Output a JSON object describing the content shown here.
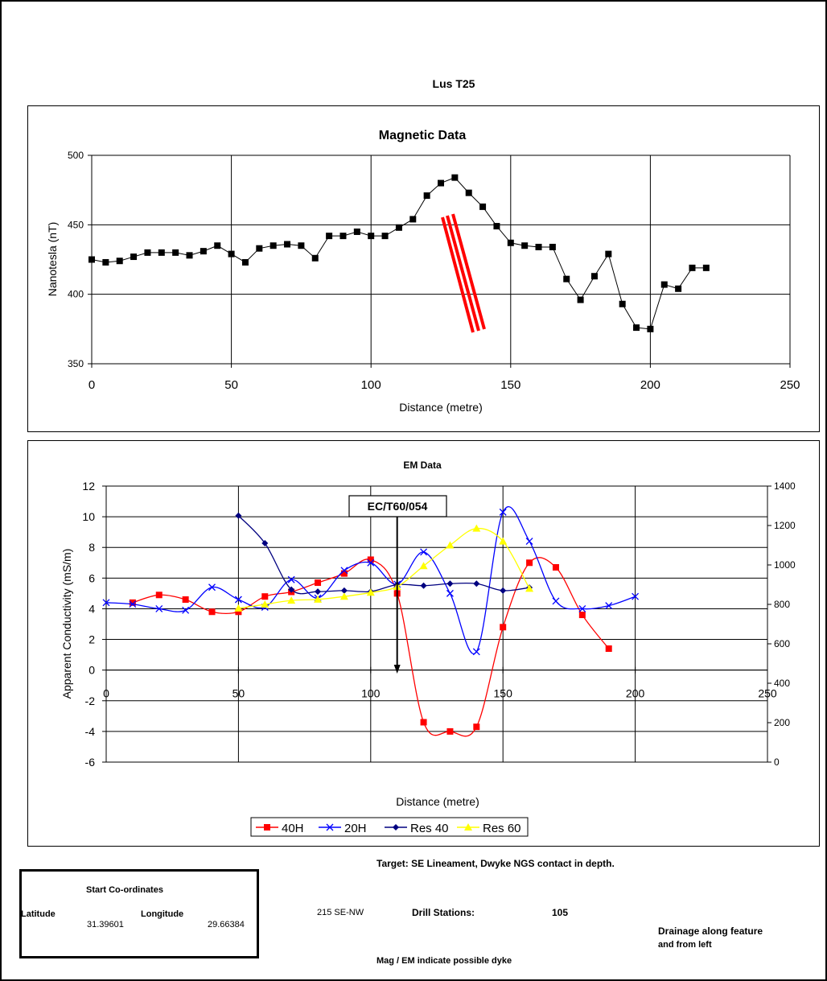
{
  "page": {
    "title": "Lus T25",
    "target_text": "Target: SE Lineament, Dwyke NGS contact in depth.",
    "coords": {
      "heading": "Start Co-ordinates",
      "latitude_label": "Latitude",
      "longitude_label": "Longitude",
      "latitude_value": "31.39601",
      "longitude_value": "29.66384"
    },
    "direction": "215 SE-NW",
    "drill_label": "Drill Stations:",
    "drill_value": "105",
    "drainage_line1": "Drainage along feature",
    "drainage_line2": "and from left",
    "mag_em_note": "Mag / EM indicate possible dyke"
  },
  "chart_data": [
    {
      "type": "line",
      "title": "Magnetic Data",
      "xlabel": "Distance (metre)",
      "ylabel": "Nanotesla (nT)",
      "xlim": [
        0,
        250
      ],
      "ylim": [
        350,
        500
      ],
      "x_ticks": [
        "0",
        "50",
        "100",
        "150",
        "200",
        "250"
      ],
      "y_ticks": [
        "350",
        "400",
        "450",
        "500"
      ],
      "grid": true,
      "series_color": "#000000",
      "x": [
        0,
        5,
        10,
        15,
        20,
        25,
        30,
        35,
        40,
        45,
        50,
        55,
        60,
        65,
        70,
        75,
        80,
        85,
        90,
        95,
        100,
        105,
        110,
        115,
        120,
        125,
        130,
        135,
        140,
        145,
        150,
        155,
        160,
        165,
        170,
        175,
        180,
        185,
        190,
        195,
        200,
        205,
        210,
        215,
        220
      ],
      "values": [
        425,
        423,
        424,
        427,
        430,
        430,
        430,
        428,
        431,
        435,
        429,
        423,
        433,
        435,
        436,
        435,
        426,
        442,
        442,
        445,
        442,
        442,
        448,
        454,
        471,
        480,
        484,
        473,
        463,
        449,
        437,
        435,
        434,
        434,
        411,
        396,
        413,
        429,
        393,
        376,
        375,
        407,
        404,
        419,
        419
      ],
      "dyke_marker_color": "#ff0000"
    },
    {
      "type": "line",
      "title": "EM Data",
      "xlabel": "Distance (metre)",
      "ylabel": "Apparent Conductivity (mS/m)",
      "xlim": [
        0,
        250
      ],
      "ylim": [
        -6,
        12
      ],
      "y2lim": [
        0,
        1400
      ],
      "x_ticks": [
        "0",
        "50",
        "100",
        "150",
        "200",
        "250"
      ],
      "y_ticks": [
        "-6",
        "-4",
        "-2",
        "0",
        "2",
        "4",
        "6",
        "8",
        "10",
        "12"
      ],
      "y2_ticks": [
        "0",
        "200",
        "400",
        "600",
        "800",
        "1000",
        "1200",
        "1400"
      ],
      "grid": true,
      "legend_position": "bottom",
      "annotation": {
        "text": "EC/T60/054",
        "x": 110
      },
      "series": [
        {
          "name": "40H",
          "color": "#ff0000",
          "marker": "square",
          "axis": "left",
          "x": [
            10,
            20,
            30,
            40,
            50,
            60,
            70,
            80,
            90,
            100,
            110,
            120,
            130,
            140,
            150,
            160,
            170,
            180,
            190
          ],
          "values": [
            4.4,
            4.9,
            4.6,
            3.8,
            3.8,
            4.8,
            5.1,
            5.7,
            6.3,
            7.2,
            5.0,
            -3.4,
            -4.0,
            -3.7,
            2.8,
            7.0,
            6.7,
            3.6,
            1.4
          ]
        },
        {
          "name": "20H",
          "color": "#0000ff",
          "marker": "x",
          "axis": "left",
          "x": [
            0,
            10,
            20,
            30,
            40,
            50,
            60,
            70,
            80,
            90,
            100,
            110,
            120,
            130,
            140,
            150,
            160,
            170,
            180,
            190,
            200
          ],
          "values": [
            4.4,
            4.3,
            4.0,
            3.9,
            5.4,
            4.6,
            4.1,
            5.9,
            4.7,
            6.5,
            7.0,
            5.6,
            7.7,
            5.0,
            1.2,
            10.3,
            8.4,
            4.5,
            4.0,
            4.2,
            4.8
          ]
        },
        {
          "name": "Res 40",
          "color": "#000080",
          "marker": "diamond",
          "axis": "right",
          "x": [
            50,
            60,
            70,
            80,
            90,
            100,
            110,
            120,
            130,
            140,
            150,
            160
          ],
          "values": [
            1250,
            1110,
            875,
            865,
            870,
            865,
            900,
            895,
            905,
            905,
            870,
            885
          ]
        },
        {
          "name": "Res 60",
          "color": "#ffff00",
          "marker": "triangle",
          "axis": "right",
          "x": [
            50,
            60,
            70,
            80,
            90,
            100,
            110,
            120,
            130,
            140,
            150,
            160
          ],
          "values": [
            780,
            800,
            820,
            825,
            840,
            860,
            890,
            995,
            1100,
            1185,
            1120,
            880
          ]
        }
      ]
    }
  ]
}
